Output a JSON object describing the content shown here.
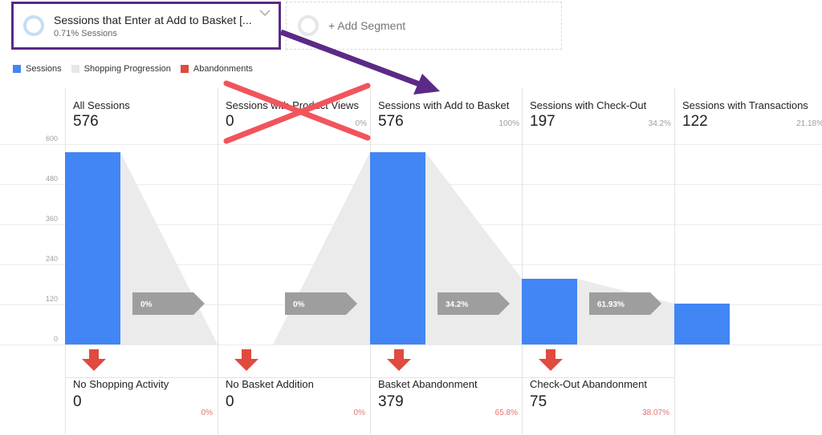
{
  "segments": {
    "primary": {
      "title": "Sessions that Enter at Add to Basket [...",
      "subtitle": "0.71% Sessions"
    },
    "add_label": "+ Add Segment"
  },
  "legend": [
    {
      "label": "Sessions",
      "color": "#4285f4"
    },
    {
      "label": "Shopping Progression",
      "color": "#e6e6e6"
    },
    {
      "label": "Abandonments",
      "color": "#e04a3f"
    }
  ],
  "chart_data": {
    "type": "bar",
    "title": "",
    "ylabel": "",
    "ylim": [
      0,
      600
    ],
    "yticks": [
      0,
      120,
      240,
      360,
      480,
      600
    ],
    "steps": [
      {
        "label": "All Sessions",
        "value": 576,
        "pct": ""
      },
      {
        "label": "Sessions with Product Views",
        "value": 0,
        "pct": "0%"
      },
      {
        "label": "Sessions with Add to Basket",
        "value": 576,
        "pct": "100%"
      },
      {
        "label": "Sessions with Check-Out",
        "value": 197,
        "pct": "34.2%"
      },
      {
        "label": "Sessions with Transactions",
        "value": 122,
        "pct": "21.18%"
      }
    ],
    "progression": [
      "0%",
      "0%",
      "34.2%",
      "61.93%"
    ],
    "abandonments": [
      {
        "label": "No Shopping Activity",
        "value": 0,
        "pct": "0%"
      },
      {
        "label": "No Basket Addition",
        "value": 0,
        "pct": "0%"
      },
      {
        "label": "Basket Abandonment",
        "value": 379,
        "pct": "65.8%"
      },
      {
        "label": "Check-Out Abandonment",
        "value": 75,
        "pct": "38.07%"
      }
    ]
  }
}
